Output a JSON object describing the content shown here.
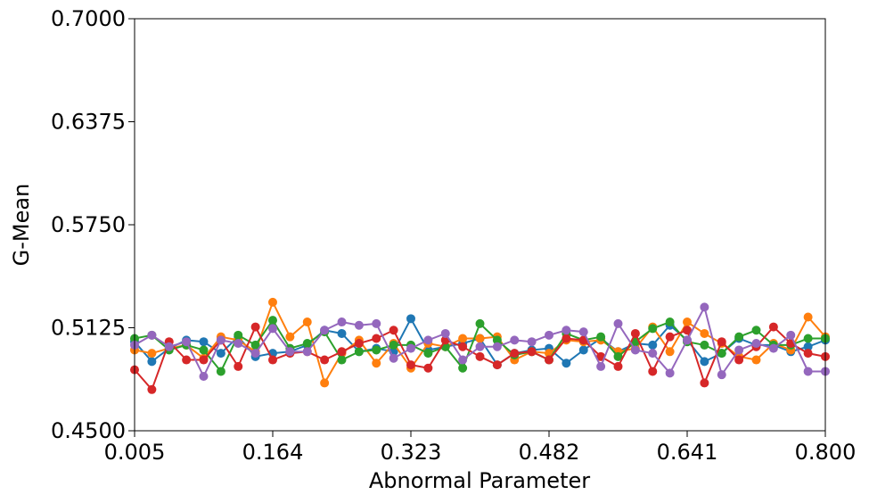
{
  "chart_data": {
    "type": "line",
    "xlabel": "Abnormal Parameter",
    "ylabel": "G-Mean",
    "x": [
      0.005,
      0.024875,
      0.04475,
      0.064625,
      0.0845,
      0.104375,
      0.12425,
      0.144125,
      0.164,
      0.183875,
      0.20375,
      0.223625,
      0.2435,
      0.263375,
      0.28325,
      0.303125,
      0.323,
      0.342875,
      0.36275,
      0.382625,
      0.4025,
      0.422375,
      0.44225,
      0.462125,
      0.482,
      0.501875,
      0.52175,
      0.541625,
      0.5615,
      0.581375,
      0.60125,
      0.621125,
      0.641,
      0.660875,
      0.68075,
      0.700625,
      0.7205,
      0.740375,
      0.76025,
      0.780125,
      0.8
    ],
    "series": [
      {
        "color": "#1f77b4",
        "values": [
          0.504,
          0.492,
          0.5,
          0.505,
          0.504,
          0.497,
          0.507,
          0.495,
          0.497,
          0.498,
          0.502,
          0.511,
          0.509,
          0.498,
          0.5,
          0.498,
          0.518,
          0.499,
          0.501,
          0.503,
          0.506,
          0.49,
          0.497,
          0.499,
          0.5,
          0.491,
          0.499,
          0.506,
          0.498,
          0.503,
          0.502,
          0.514,
          0.505,
          0.492,
          0.497,
          0.506,
          0.502,
          0.502,
          0.498,
          0.501,
          0.505
        ]
      },
      {
        "color": "#ff7f0e",
        "values": [
          0.499,
          0.497,
          0.5,
          0.502,
          0.494,
          0.507,
          0.505,
          0.498,
          0.528,
          0.507,
          0.516,
          0.479,
          0.497,
          0.505,
          0.491,
          0.503,
          0.488,
          0.503,
          0.501,
          0.506,
          0.506,
          0.507,
          0.493,
          0.498,
          0.497,
          0.505,
          0.504,
          0.505,
          0.498,
          0.5,
          0.513,
          0.498,
          0.516,
          0.509,
          0.503,
          0.495,
          0.493,
          0.503,
          0.499,
          0.519,
          0.507
        ]
      },
      {
        "color": "#2ca02c",
        "values": [
          0.506,
          0.508,
          0.499,
          0.502,
          0.499,
          0.486,
          0.508,
          0.502,
          0.517,
          0.5,
          0.503,
          0.51,
          0.493,
          0.498,
          0.499,
          0.502,
          0.502,
          0.497,
          0.501,
          0.488,
          0.515,
          0.505,
          0.496,
          0.498,
          0.493,
          0.509,
          0.505,
          0.507,
          0.495,
          0.504,
          0.512,
          0.516,
          0.504,
          0.502,
          0.497,
          0.507,
          0.511,
          0.502,
          0.502,
          0.506,
          0.506
        ]
      },
      {
        "color": "#d62728",
        "values": [
          0.487,
          0.475,
          0.504,
          0.493,
          0.493,
          0.505,
          0.489,
          0.513,
          0.493,
          0.497,
          0.498,
          0.493,
          0.498,
          0.503,
          0.506,
          0.511,
          0.49,
          0.488,
          0.505,
          0.501,
          0.495,
          0.49,
          0.497,
          0.498,
          0.493,
          0.506,
          0.505,
          0.495,
          0.489,
          0.509,
          0.486,
          0.507,
          0.511,
          0.479,
          0.504,
          0.493,
          0.501,
          0.513,
          0.503,
          0.497,
          0.495
        ]
      },
      {
        "color": "#9467bd",
        "values": [
          0.502,
          0.508,
          0.501,
          0.504,
          0.483,
          0.505,
          0.503,
          0.497,
          0.512,
          0.498,
          0.498,
          0.511,
          0.516,
          0.514,
          0.515,
          0.494,
          0.5,
          0.505,
          0.509,
          0.493,
          0.501,
          0.501,
          0.505,
          0.504,
          0.508,
          0.511,
          0.51,
          0.489,
          0.515,
          0.499,
          0.497,
          0.485,
          0.505,
          0.525,
          0.484,
          0.499,
          0.503,
          0.5,
          0.508,
          0.486,
          0.486
        ]
      }
    ],
    "xlim": [
      0.005,
      0.8
    ],
    "xticks": [
      0.005,
      0.164,
      0.323,
      0.482,
      0.641,
      {
        "value": 0.8,
        "label": "0.800"
      }
    ],
    "ylim": [
      0.45,
      0.7
    ],
    "yticks": [
      {
        "value": 0.45,
        "label": "0.4500"
      },
      {
        "value": 0.5125,
        "label": "0.5125"
      },
      {
        "value": 0.575,
        "label": "0.5750"
      },
      {
        "value": 0.6375,
        "label": "0.6375"
      },
      {
        "value": 0.7,
        "label": "0.7000"
      }
    ],
    "grid": false
  }
}
